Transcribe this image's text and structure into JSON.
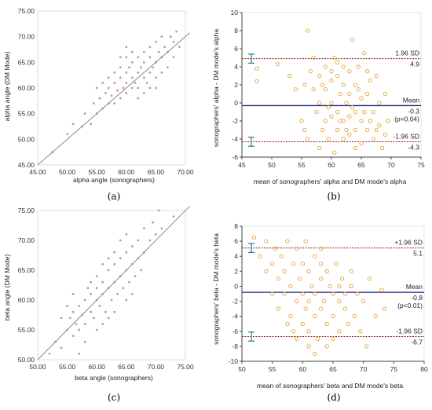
{
  "panels": [
    {
      "label": "(a)",
      "chart_data": {
        "type": "scatter",
        "title": "",
        "xlabel": "alpha angle (sonographers)",
        "ylabel": "alpha angle (DM Mode)",
        "xlim": [
          45,
          70
        ],
        "ylim": [
          45,
          75
        ],
        "xticks": [
          "45.00",
          "50.00",
          "55.00",
          "60.00",
          "65.00",
          "70.00"
        ],
        "yticks": [
          "45.00",
          "50.00",
          "55.00",
          "60.00",
          "65.00",
          "70.00",
          "75.00"
        ],
        "identity_line": true,
        "marker_color": "#b3859a",
        "points": [
          [
            47.5,
            47.5
          ],
          [
            50,
            51
          ],
          [
            51,
            53
          ],
          [
            52.5,
            52.5
          ],
          [
            53,
            55
          ],
          [
            54,
            53
          ],
          [
            54.5,
            57
          ],
          [
            55,
            55
          ],
          [
            55.5,
            58
          ],
          [
            56,
            56
          ],
          [
            56.5,
            59
          ],
          [
            57,
            57
          ],
          [
            57,
            60
          ],
          [
            57.5,
            58.5
          ],
          [
            58,
            61
          ],
          [
            58,
            57
          ],
          [
            58.5,
            59.5
          ],
          [
            59,
            62
          ],
          [
            59,
            58
          ],
          [
            59.5,
            60
          ],
          [
            60,
            63
          ],
          [
            60,
            59
          ],
          [
            60,
            61
          ],
          [
            60.5,
            64
          ],
          [
            61,
            60
          ],
          [
            61,
            62
          ],
          [
            61,
            65
          ],
          [
            61.5,
            61
          ],
          [
            62,
            63
          ],
          [
            62,
            66
          ],
          [
            62,
            60
          ],
          [
            62.5,
            64
          ],
          [
            63,
            62
          ],
          [
            63,
            65
          ],
          [
            63,
            67
          ],
          [
            63.5,
            61
          ],
          [
            64,
            63
          ],
          [
            64,
            66
          ],
          [
            64,
            68
          ],
          [
            64.5,
            64
          ],
          [
            65,
            62
          ],
          [
            65,
            65
          ],
          [
            65,
            69
          ],
          [
            65.5,
            67
          ],
          [
            66,
            63
          ],
          [
            66,
            66
          ],
          [
            66,
            70
          ],
          [
            66.5,
            68
          ],
          [
            67,
            64
          ],
          [
            67,
            67
          ],
          [
            67.5,
            70
          ],
          [
            68,
            66
          ],
          [
            68,
            69
          ],
          [
            68.5,
            71
          ],
          [
            69,
            68
          ],
          [
            59,
            64
          ],
          [
            60,
            66
          ],
          [
            58,
            63
          ],
          [
            62,
            58
          ],
          [
            63,
            59
          ],
          [
            64,
            60
          ],
          [
            65,
            60
          ],
          [
            56,
            61
          ],
          [
            55,
            60
          ],
          [
            57,
            62
          ],
          [
            61,
            67
          ],
          [
            60,
            68
          ],
          [
            59,
            66
          ]
        ]
      }
    },
    {
      "label": "(b)",
      "chart_data": {
        "type": "scatter",
        "title": "",
        "xlabel": "mean of sonographers' alpha and DM mode's alpha",
        "ylabel": "sonographers' alpha - DM mode's alpha",
        "xlim": [
          45,
          75
        ],
        "ylim": [
          -6,
          10
        ],
        "xticks": [
          "45",
          "50",
          "55",
          "60",
          "65",
          "70",
          "75"
        ],
        "yticks": [
          "-6",
          "-4",
          "-2",
          "0",
          "2",
          "4",
          "6",
          "8",
          "10"
        ],
        "marker_color": "#e8a33a",
        "mean_line": {
          "value": -0.3,
          "label": "Mean",
          "value_label": "-0.3",
          "p_label": "(p=0.04)",
          "color": "#1d2a8a"
        },
        "upper_loa": {
          "value": 4.9,
          "label": "1.96 SD",
          "value_label": "4.9",
          "ci": [
            4.4,
            5.4
          ],
          "color": "#8a1c1c"
        },
        "lower_loa": {
          "value": -4.3,
          "label": "-1.96 SD",
          "value_label": "-4.3",
          "ci": [
            -4.8,
            -3.8
          ],
          "color": "#8a1c1c"
        },
        "points": [
          [
            47.5,
            2.4
          ],
          [
            47.5,
            3.8
          ],
          [
            51,
            4.3
          ],
          [
            53,
            3
          ],
          [
            54,
            1.5
          ],
          [
            55,
            -2
          ],
          [
            56,
            8
          ],
          [
            55.5,
            2
          ],
          [
            56,
            -4
          ],
          [
            57,
            5
          ],
          [
            57.5,
            -1
          ],
          [
            58,
            3
          ],
          [
            58,
            0
          ],
          [
            58.5,
            -3
          ],
          [
            59,
            4
          ],
          [
            59,
            1.5
          ],
          [
            59,
            -2
          ],
          [
            59.5,
            -4
          ],
          [
            60,
            2.5
          ],
          [
            60,
            0
          ],
          [
            60,
            -1.5
          ],
          [
            60.5,
            5
          ],
          [
            61,
            3
          ],
          [
            61,
            -1
          ],
          [
            61,
            -3
          ],
          [
            61.5,
            1
          ],
          [
            62,
            4
          ],
          [
            62,
            2
          ],
          [
            62,
            -2
          ],
          [
            62,
            -4
          ],
          [
            62.5,
            0
          ],
          [
            63,
            3.5
          ],
          [
            63,
            1
          ],
          [
            63,
            -1.5
          ],
          [
            63,
            -3.5
          ],
          [
            63.5,
            7
          ],
          [
            64,
            2
          ],
          [
            64,
            -1
          ],
          [
            64,
            -3
          ],
          [
            64.5,
            4
          ],
          [
            65,
            0.5
          ],
          [
            65,
            -2
          ],
          [
            65,
            -4.5
          ],
          [
            65.5,
            5.5
          ],
          [
            66,
            1
          ],
          [
            66,
            -3
          ],
          [
            66.5,
            2.5
          ],
          [
            67,
            -1
          ],
          [
            67,
            -4
          ],
          [
            67.5,
            3
          ],
          [
            68,
            0
          ],
          [
            68,
            -2.5
          ],
          [
            68.5,
            -5
          ],
          [
            69,
            1
          ],
          [
            69,
            -3.5
          ],
          [
            69.5,
            -2
          ],
          [
            58,
            -5
          ],
          [
            57,
            1.5
          ],
          [
            60.5,
            -5.5
          ],
          [
            64,
            -5
          ],
          [
            55.5,
            -3
          ],
          [
            56.5,
            3.5
          ],
          [
            66,
            3.5
          ],
          [
            58.5,
            2
          ],
          [
            61.5,
            -2
          ],
          [
            62.5,
            -3
          ],
          [
            63.5,
            -0.5
          ],
          [
            64.5,
            1.5
          ],
          [
            65.5,
            -1
          ],
          [
            60,
            3.5
          ],
          [
            61,
            4.5
          ],
          [
            59.5,
            -0.5
          ],
          [
            66.5,
            -2
          ],
          [
            67.5,
            -3
          ]
        ]
      }
    },
    {
      "label": "(c)",
      "chart_data": {
        "type": "scatter",
        "title": "",
        "xlabel": "beta angle (sonographers)",
        "ylabel": "beta angle (DM Mode)",
        "xlim": [
          50,
          75
        ],
        "ylim": [
          50,
          75
        ],
        "xticks": [
          "50.00",
          "55.00",
          "60.00",
          "65.00",
          "70.00",
          "75.00"
        ],
        "yticks": [
          "50.00",
          "55.00",
          "60.00",
          "65.00",
          "70.00",
          "75.00"
        ],
        "identity_line": true,
        "marker_color": "#b3859a",
        "points": [
          [
            52,
            51
          ],
          [
            53,
            53
          ],
          [
            54,
            52
          ],
          [
            55,
            55
          ],
          [
            55.5,
            57
          ],
          [
            56,
            54
          ],
          [
            56,
            58
          ],
          [
            56.5,
            56
          ],
          [
            57,
            59
          ],
          [
            57,
            55
          ],
          [
            57.5,
            57.5
          ],
          [
            58,
            60
          ],
          [
            58,
            56
          ],
          [
            58.5,
            62
          ],
          [
            59,
            58
          ],
          [
            59,
            61
          ],
          [
            59,
            63
          ],
          [
            59.5,
            57
          ],
          [
            60,
            60
          ],
          [
            60,
            62
          ],
          [
            60,
            64
          ],
          [
            60.5,
            59
          ],
          [
            61,
            61
          ],
          [
            61,
            63
          ],
          [
            61,
            66
          ],
          [
            61.5,
            58
          ],
          [
            62,
            62
          ],
          [
            62,
            65
          ],
          [
            62,
            67
          ],
          [
            62.5,
            60
          ],
          [
            63,
            63
          ],
          [
            63,
            66
          ],
          [
            63,
            68
          ],
          [
            63.5,
            61
          ],
          [
            64,
            64
          ],
          [
            64,
            67
          ],
          [
            64,
            70
          ],
          [
            64.5,
            62
          ],
          [
            65,
            65
          ],
          [
            65,
            68
          ],
          [
            65,
            71
          ],
          [
            65.5,
            63
          ],
          [
            66,
            66
          ],
          [
            66,
            69
          ],
          [
            66.5,
            64
          ],
          [
            67,
            67
          ],
          [
            67,
            70
          ],
          [
            67.5,
            65
          ],
          [
            68,
            68
          ],
          [
            68,
            72
          ],
          [
            69,
            70
          ],
          [
            69.5,
            73
          ],
          [
            70,
            71
          ],
          [
            70.5,
            75
          ],
          [
            71,
            72
          ],
          [
            73,
            74
          ],
          [
            57,
            51
          ],
          [
            58,
            53
          ],
          [
            60,
            55
          ],
          [
            61,
            56
          ],
          [
            56,
            61
          ],
          [
            55,
            59
          ],
          [
            54,
            57
          ],
          [
            62,
            57
          ],
          [
            63,
            58
          ],
          [
            65,
            60
          ],
          [
            66,
            61
          ]
        ]
      }
    },
    {
      "label": "(d)",
      "chart_data": {
        "type": "scatter",
        "title": "",
        "xlabel": "mean of sonographers' beta and DM mode's beta",
        "ylabel": "sonographers' beta - DM mode's beta",
        "xlim": [
          50,
          80
        ],
        "ylim": [
          -10,
          8
        ],
        "xticks": [
          "50",
          "55",
          "60",
          "65",
          "70",
          "75",
          "80"
        ],
        "yticks": [
          "-10",
          "-8",
          "-6",
          "-4",
          "-2",
          "0",
          "2",
          "4",
          "6",
          "8"
        ],
        "marker_color": "#e8a33a",
        "mean_line": {
          "value": -0.8,
          "label": "Mean",
          "value_label": "-0.8",
          "p_label": "(p<0.01)",
          "color": "#1d2a8a"
        },
        "upper_loa": {
          "value": 5.1,
          "label": "+1.96 SD",
          "value_label": "5.1",
          "ci": [
            4.5,
            5.7
          ],
          "color": "#8a1c1c"
        },
        "lower_loa": {
          "value": -6.7,
          "label": "-1.96 SD",
          "value_label": "-6.7",
          "ci": [
            -7.3,
            -6.1
          ],
          "color": "#8a1c1c"
        },
        "points": [
          [
            52,
            6.5
          ],
          [
            53,
            4
          ],
          [
            54,
            6
          ],
          [
            55,
            3
          ],
          [
            55.5,
            5
          ],
          [
            56,
            1
          ],
          [
            56,
            -3
          ],
          [
            56.5,
            4
          ],
          [
            57,
            2
          ],
          [
            57,
            -1
          ],
          [
            57.5,
            6
          ],
          [
            58,
            0
          ],
          [
            58,
            -4
          ],
          [
            58.5,
            3
          ],
          [
            59,
            -2
          ],
          [
            59,
            5
          ],
          [
            59.5,
            1
          ],
          [
            60,
            -1
          ],
          [
            60,
            -5
          ],
          [
            60,
            3
          ],
          [
            60.5,
            -3
          ],
          [
            61,
            2
          ],
          [
            61,
            -2
          ],
          [
            61,
            -6
          ],
          [
            61.5,
            0
          ],
          [
            62,
            4
          ],
          [
            62,
            -1
          ],
          [
            62,
            -4
          ],
          [
            62.5,
            -7
          ],
          [
            63,
            1
          ],
          [
            63,
            -3
          ],
          [
            63,
            5
          ],
          [
            63.5,
            -2
          ],
          [
            64,
            2
          ],
          [
            64,
            -5
          ],
          [
            64.5,
            0
          ],
          [
            65,
            -1
          ],
          [
            65,
            -4
          ],
          [
            65.5,
            3
          ],
          [
            66,
            -2
          ],
          [
            66,
            -6
          ],
          [
            66.5,
            1
          ],
          [
            67,
            -3
          ],
          [
            67.5,
            -5
          ],
          [
            68,
            0
          ],
          [
            68,
            2
          ],
          [
            68.5,
            -4
          ],
          [
            69,
            -1
          ],
          [
            69.5,
            -6
          ],
          [
            70,
            -2
          ],
          [
            70.5,
            -8
          ],
          [
            71,
            1
          ],
          [
            72,
            -4
          ],
          [
            73,
            -0.5
          ],
          [
            73.5,
            -3
          ],
          [
            59,
            -7
          ],
          [
            61,
            -8
          ],
          [
            62,
            -9
          ],
          [
            64,
            -8
          ],
          [
            65,
            -7
          ],
          [
            58.5,
            -6
          ],
          [
            57.5,
            -5
          ],
          [
            60.5,
            6
          ],
          [
            55,
            -1
          ],
          [
            54,
            2
          ],
          [
            63,
            3
          ],
          [
            66,
            0
          ],
          [
            67,
            -1
          ]
        ]
      }
    }
  ]
}
